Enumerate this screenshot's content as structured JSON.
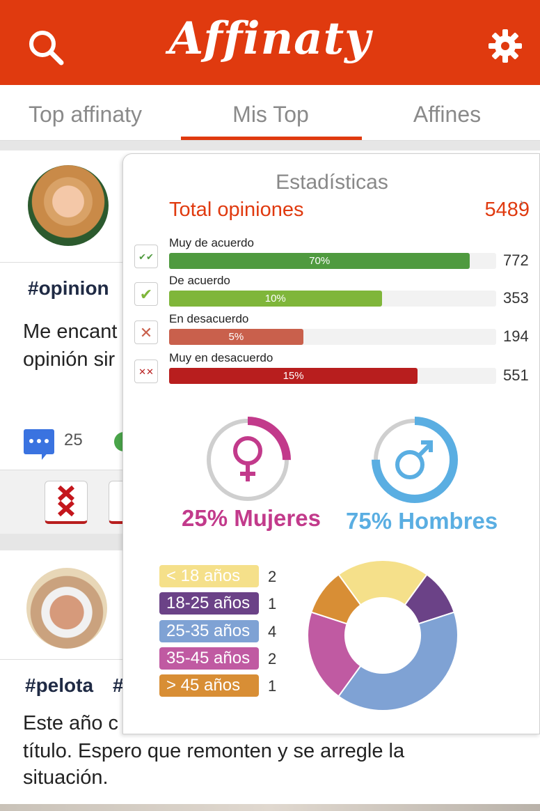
{
  "header": {
    "logo_text": "Affinaty",
    "color": "#e03a0f",
    "search_icon": "search-icon",
    "settings_icon": "gear-icon"
  },
  "tabs": [
    {
      "label": "Top affinaty",
      "active": false
    },
    {
      "label": "Mis Top",
      "active": true
    },
    {
      "label": "Affines",
      "active": false
    }
  ],
  "feed": [
    {
      "hashtag": "#opinion",
      "text_line1": "Me encant",
      "text_line2": "opinión sir",
      "comments": "25"
    },
    {
      "hashtag": "#pelota",
      "hashtag2": "#",
      "text_line1": "Este año c",
      "text_line2": "título. Espero que remonten y se arregle la",
      "text_line3": "situación."
    }
  ],
  "stats": {
    "title": "Estadísticas",
    "total_label": "Total opiniones",
    "total_value": "5489",
    "opinions": [
      {
        "label": "Muy de acuerdo",
        "percent_text": "70%",
        "fraction": 0.92,
        "count": "772",
        "color": "#4f9a3f",
        "icon": "double-check-icon",
        "glyph": "✔✔",
        "glyph_color": "#4f9a3f"
      },
      {
        "label": "De acuerdo",
        "percent_text": "10%",
        "fraction": 0.65,
        "count": "353",
        "color": "#7fb63a",
        "icon": "check-icon",
        "glyph": "✔",
        "glyph_color": "#7fb63a"
      },
      {
        "label": "En desacuerdo",
        "percent_text": "5%",
        "fraction": 0.41,
        "count": "194",
        "color": "#c9604c",
        "icon": "cross-icon",
        "glyph": "✕",
        "glyph_color": "#c9604c"
      },
      {
        "label": "Muy en desacuerdo",
        "percent_text": "15%",
        "fraction": 0.76,
        "count": "551",
        "color": "#b81e1e",
        "icon": "double-cross-icon",
        "glyph": "✕✕",
        "glyph_color": "#b81e1e"
      }
    ],
    "gender": {
      "female": {
        "label": "25% Mujeres",
        "fraction": 0.25,
        "color": "#c23a8b"
      },
      "male": {
        "label": "75% Hombres",
        "fraction": 0.75,
        "color": "#5aaee2"
      }
    },
    "age_groups": [
      {
        "label": "< 18 años",
        "count": "2",
        "value": 2,
        "color": "#f5e08a"
      },
      {
        "label": "18-25 años",
        "count": "1",
        "value": 1,
        "color": "#6b4287"
      },
      {
        "label": "25-35 años",
        "count": "4",
        "value": 4,
        "color": "#7fa2d4"
      },
      {
        "label": "35-45 años",
        "count": "2",
        "value": 2,
        "color": "#c05aa2"
      },
      {
        "label": "> 45 años",
        "count": "1",
        "value": 1,
        "color": "#d88e35"
      }
    ]
  },
  "chart_data": {
    "type": "pie",
    "categories": [
      "< 18 años",
      "18-25 años",
      "25-35 años",
      "35-45 años",
      "> 45 años"
    ],
    "values": [
      2,
      1,
      4,
      2,
      1
    ]
  }
}
